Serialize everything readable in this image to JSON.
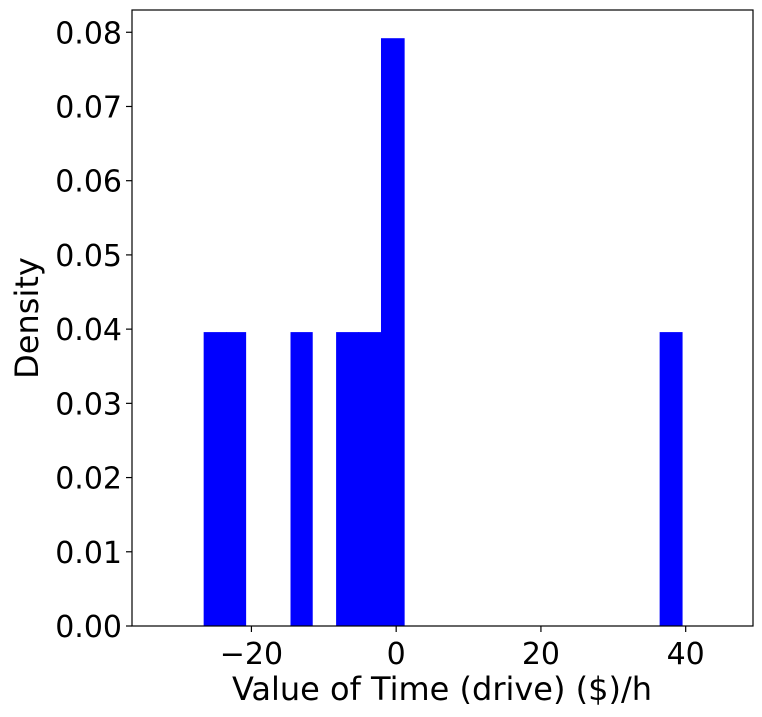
{
  "chart_data": {
    "type": "bar",
    "title": "",
    "xlabel": "Value of Time (drive) ($)/h",
    "ylabel": "Density",
    "xlim": [
      -36.5,
      49.3
    ],
    "ylim": [
      0,
      0.083
    ],
    "grid": false,
    "legend": "none",
    "bar_color": "#0000ff",
    "x_ticks": [
      {
        "value": -20,
        "label": "−20"
      },
      {
        "value": 0,
        "label": "0"
      },
      {
        "value": 20,
        "label": "20"
      },
      {
        "value": 40,
        "label": "40"
      }
    ],
    "y_ticks": [
      {
        "value": 0.0,
        "label": "0.00"
      },
      {
        "value": 0.01,
        "label": "0.01"
      },
      {
        "value": 0.02,
        "label": "0.02"
      },
      {
        "value": 0.03,
        "label": "0.03"
      },
      {
        "value": 0.04,
        "label": "0.04"
      },
      {
        "value": 0.05,
        "label": "0.05"
      },
      {
        "value": 0.06,
        "label": "0.06"
      },
      {
        "value": 0.07,
        "label": "0.07"
      },
      {
        "value": 0.08,
        "label": "0.08"
      }
    ],
    "bins": [
      {
        "x0": -26.6,
        "x1": -23.5,
        "value": 0.0396
      },
      {
        "x0": -23.5,
        "x1": -20.8,
        "value": 0.0396
      },
      {
        "x0": -14.6,
        "x1": -11.6,
        "value": 0.0396
      },
      {
        "x0": -8.3,
        "x1": -5.2,
        "value": 0.0396
      },
      {
        "x0": -5.2,
        "x1": -2.1,
        "value": 0.0396
      },
      {
        "x0": -2.1,
        "x1": 1.1,
        "value": 0.0792
      },
      {
        "x0": 36.4,
        "x1": 39.5,
        "value": 0.0396
      }
    ]
  }
}
